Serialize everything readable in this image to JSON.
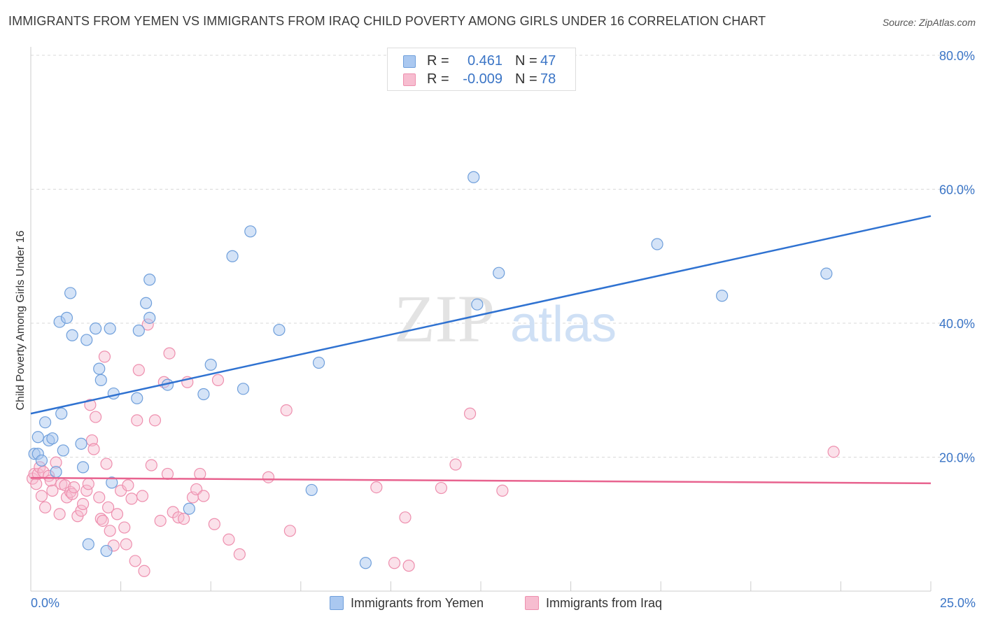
{
  "title": "IMMIGRANTS FROM YEMEN VS IMMIGRANTS FROM IRAQ CHILD POVERTY AMONG GIRLS UNDER 16 CORRELATION CHART",
  "source": "Source: ZipAtlas.com",
  "watermark": {
    "zip": "ZIP",
    "atlas": "atlas"
  },
  "legend": {
    "rows": [
      {
        "r_label": "R =",
        "r_value": "0.461",
        "n_label": "N =",
        "n_value": "47"
      },
      {
        "r_label": "R =",
        "r_value": "-0.009",
        "n_label": "N =",
        "n_value": "78"
      }
    ]
  },
  "colors": {
    "yemen_fill": "#aac8f0",
    "yemen_stroke": "#6f9fdb",
    "yemen_line": "#2f72d1",
    "iraq_fill": "#f7bdd0",
    "iraq_stroke": "#ee8fae",
    "iraq_line": "#e8638f",
    "tick_text": "#3b75c6",
    "grid": "#d8d8d8"
  },
  "chart_data": {
    "type": "scatter",
    "title": "IMMIGRANTS FROM YEMEN VS IMMIGRANTS FROM IRAQ CHILD POVERTY AMONG GIRLS UNDER 16 CORRELATION CHART",
    "xlabel": "",
    "ylabel": "Child Poverty Among Girls Under 16",
    "xlim": [
      0,
      25
    ],
    "ylim": [
      0,
      80
    ],
    "x_tick_labels": [
      "0.0%",
      "25.0%"
    ],
    "y_tick_labels": [
      "20.0%",
      "40.0%",
      "60.0%",
      "80.0%"
    ],
    "y_ticks": [
      20,
      40,
      60,
      80
    ],
    "grid": true,
    "legend_position": "bottom",
    "series": [
      {
        "name": "Immigrants from Yemen",
        "r": 0.461,
        "n": 47,
        "trend": {
          "x": [
            0,
            25
          ],
          "y": [
            26.5,
            56.0
          ]
        },
        "points": [
          [
            0.1,
            20.5
          ],
          [
            0.2,
            23.0
          ],
          [
            0.2,
            20.5
          ],
          [
            0.3,
            19.5
          ],
          [
            0.4,
            25.2
          ],
          [
            0.5,
            22.5
          ],
          [
            0.6,
            22.8
          ],
          [
            0.7,
            17.8
          ],
          [
            0.8,
            40.2
          ],
          [
            0.85,
            26.5
          ],
          [
            0.9,
            21.0
          ],
          [
            1.0,
            40.8
          ],
          [
            1.1,
            44.5
          ],
          [
            1.15,
            38.2
          ],
          [
            1.4,
            22.0
          ],
          [
            1.45,
            18.5
          ],
          [
            1.55,
            37.5
          ],
          [
            1.6,
            7.0
          ],
          [
            1.8,
            39.2
          ],
          [
            1.9,
            33.2
          ],
          [
            1.95,
            31.5
          ],
          [
            2.1,
            6.0
          ],
          [
            2.2,
            39.2
          ],
          [
            2.25,
            16.2
          ],
          [
            2.3,
            29.5
          ],
          [
            2.95,
            28.8
          ],
          [
            3.0,
            38.9
          ],
          [
            3.2,
            43.0
          ],
          [
            3.3,
            46.5
          ],
          [
            3.3,
            40.8
          ],
          [
            3.8,
            30.8
          ],
          [
            4.4,
            12.3
          ],
          [
            4.8,
            29.4
          ],
          [
            5.0,
            33.8
          ],
          [
            5.6,
            50.0
          ],
          [
            5.9,
            30.2
          ],
          [
            6.1,
            53.7
          ],
          [
            6.9,
            39.0
          ],
          [
            7.8,
            15.1
          ],
          [
            8.0,
            34.1
          ],
          [
            9.3,
            4.2
          ],
          [
            12.3,
            61.8
          ],
          [
            12.4,
            42.8
          ],
          [
            13.0,
            47.5
          ],
          [
            17.4,
            51.8
          ],
          [
            19.2,
            44.1
          ],
          [
            22.1,
            47.4
          ]
        ]
      },
      {
        "name": "Immigrants from Iraq",
        "r": -0.009,
        "n": 78,
        "trend": {
          "x": [
            0,
            25
          ],
          "y": [
            16.9,
            16.1
          ]
        },
        "points": [
          [
            0.05,
            16.8
          ],
          [
            0.1,
            17.5
          ],
          [
            0.15,
            16.0
          ],
          [
            0.2,
            17.5
          ],
          [
            0.25,
            18.5
          ],
          [
            0.3,
            14.2
          ],
          [
            0.35,
            17.8
          ],
          [
            0.4,
            12.5
          ],
          [
            0.5,
            17.2
          ],
          [
            0.55,
            16.5
          ],
          [
            0.6,
            15.0
          ],
          [
            0.7,
            19.2
          ],
          [
            0.8,
            11.5
          ],
          [
            0.85,
            16.0
          ],
          [
            0.95,
            15.8
          ],
          [
            1.0,
            14.0
          ],
          [
            1.1,
            14.8
          ],
          [
            1.15,
            14.5
          ],
          [
            1.2,
            15.5
          ],
          [
            1.3,
            11.2
          ],
          [
            1.4,
            12.0
          ],
          [
            1.45,
            13.0
          ],
          [
            1.55,
            15.0
          ],
          [
            1.6,
            16.0
          ],
          [
            1.65,
            27.8
          ],
          [
            1.7,
            22.5
          ],
          [
            1.75,
            21.2
          ],
          [
            1.8,
            26.0
          ],
          [
            1.9,
            14.0
          ],
          [
            1.95,
            10.8
          ],
          [
            2.0,
            10.5
          ],
          [
            2.05,
            35.0
          ],
          [
            2.1,
            19.0
          ],
          [
            2.15,
            12.5
          ],
          [
            2.2,
            9.0
          ],
          [
            2.3,
            6.8
          ],
          [
            2.4,
            11.5
          ],
          [
            2.5,
            15.0
          ],
          [
            2.6,
            9.5
          ],
          [
            2.65,
            7.0
          ],
          [
            2.7,
            15.8
          ],
          [
            2.8,
            13.8
          ],
          [
            2.9,
            4.5
          ],
          [
            2.95,
            25.5
          ],
          [
            3.0,
            33.0
          ],
          [
            3.1,
            14.2
          ],
          [
            3.15,
            3.0
          ],
          [
            3.25,
            39.8
          ],
          [
            3.35,
            18.8
          ],
          [
            3.45,
            25.5
          ],
          [
            3.6,
            10.5
          ],
          [
            3.7,
            31.2
          ],
          [
            3.8,
            17.5
          ],
          [
            3.85,
            35.5
          ],
          [
            3.95,
            11.8
          ],
          [
            4.1,
            11.0
          ],
          [
            4.25,
            10.8
          ],
          [
            4.35,
            31.2
          ],
          [
            4.5,
            14.0
          ],
          [
            4.6,
            15.2
          ],
          [
            4.7,
            17.5
          ],
          [
            4.8,
            14.2
          ],
          [
            5.1,
            10.0
          ],
          [
            5.2,
            31.5
          ],
          [
            5.5,
            7.7
          ],
          [
            5.8,
            5.5
          ],
          [
            6.6,
            17.0
          ],
          [
            7.1,
            27.0
          ],
          [
            7.2,
            9.0
          ],
          [
            9.6,
            15.5
          ],
          [
            10.1,
            4.2
          ],
          [
            10.4,
            11.0
          ],
          [
            10.5,
            3.8
          ],
          [
            11.4,
            15.4
          ],
          [
            11.8,
            18.9
          ],
          [
            12.2,
            26.5
          ],
          [
            13.1,
            15.0
          ],
          [
            22.3,
            20.8
          ]
        ]
      }
    ]
  },
  "bottom_legend": [
    "Immigrants from Yemen",
    "Immigrants from Iraq"
  ]
}
